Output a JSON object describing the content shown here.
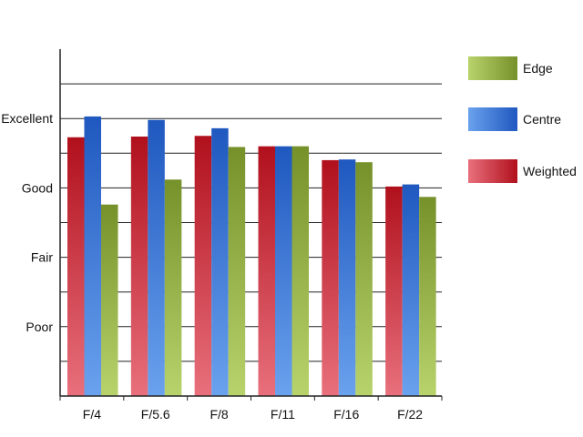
{
  "chart_data": {
    "type": "bar",
    "title": "",
    "xlabel": "",
    "ylabel": "",
    "categories": [
      "F/4",
      "F/5.6",
      "F/8",
      "F/11",
      "F/16",
      "F/22"
    ],
    "y_scale": {
      "range": [
        0,
        4
      ],
      "tick_labels": [
        {
          "value": 1,
          "label": "Poor"
        },
        {
          "value": 2,
          "label": "Fair"
        },
        {
          "value": 3,
          "label": "Good"
        },
        {
          "value": 4,
          "label": "Excellent"
        }
      ]
    },
    "grid": true,
    "legend": "right",
    "series": [
      {
        "name": "Weighted",
        "values": [
          3.73,
          3.74,
          3.75,
          3.6,
          3.4,
          3.02
        ],
        "colors": {
          "light": "#e8707c",
          "dark": "#b0101c"
        }
      },
      {
        "name": "Centre",
        "values": [
          4.03,
          3.98,
          3.86,
          3.6,
          3.41,
          3.05
        ],
        "colors": {
          "light": "#6aa2ee",
          "dark": "#1f58bf"
        }
      },
      {
        "name": "Edge",
        "values": [
          2.76,
          3.12,
          3.59,
          3.6,
          3.37,
          2.87
        ],
        "colors": {
          "light": "#b8d36c",
          "dark": "#76902a"
        }
      }
    ],
    "legend_order": [
      "Edge",
      "Centre",
      "Weighted"
    ]
  }
}
